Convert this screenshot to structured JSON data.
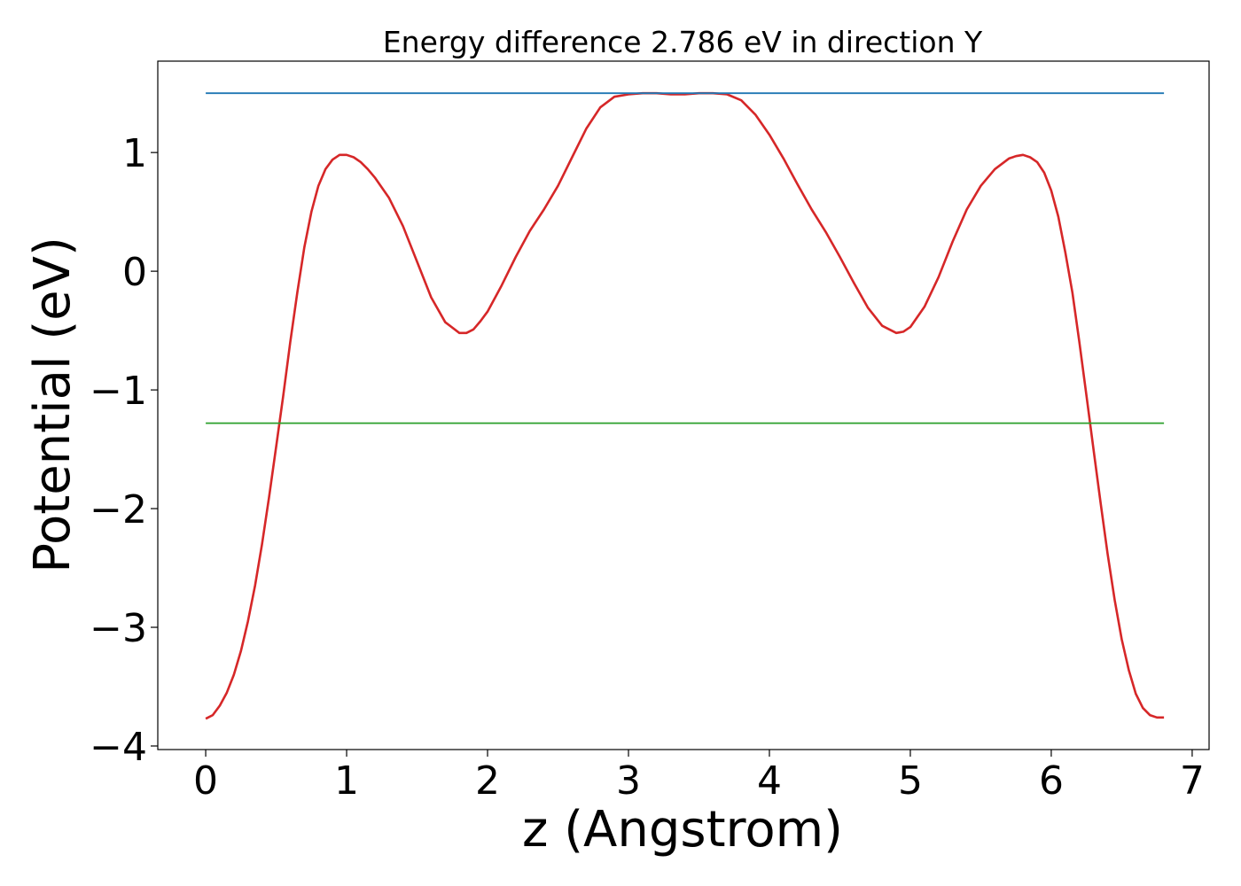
{
  "chart_data": {
    "type": "line",
    "title": "Energy difference 2.786 eV in direction Y",
    "xlabel": "z (Angstrom)",
    "ylabel": "Potential (eV)",
    "xlim": [
      -0.34,
      7.12
    ],
    "ylim": [
      -4.03,
      1.77
    ],
    "xticks": [
      0,
      1,
      2,
      3,
      4,
      5,
      6,
      7
    ],
    "yticks": [
      -4,
      -3,
      -2,
      -1,
      0,
      1
    ],
    "xtick_labels": [
      "0",
      "1",
      "2",
      "3",
      "4",
      "5",
      "6",
      "7"
    ],
    "ytick_labels": [
      "−4",
      "−3",
      "−2",
      "−1",
      "0",
      "1"
    ],
    "grid": false,
    "series": [
      {
        "color": "#d62728",
        "x": [
          0.0,
          0.05,
          0.1,
          0.15,
          0.2,
          0.25,
          0.3,
          0.35,
          0.4,
          0.45,
          0.5,
          0.55,
          0.6,
          0.65,
          0.7,
          0.75,
          0.8,
          0.85,
          0.9,
          0.95,
          1.0,
          1.05,
          1.1,
          1.15,
          1.2,
          1.3,
          1.4,
          1.5,
          1.6,
          1.7,
          1.8,
          1.85,
          1.9,
          1.95,
          2.0,
          2.1,
          2.2,
          2.3,
          2.4,
          2.5,
          2.6,
          2.7,
          2.8,
          2.9,
          3.0,
          3.1,
          3.2,
          3.3,
          3.4,
          3.5,
          3.6,
          3.7,
          3.8,
          3.9,
          4.0,
          4.1,
          4.2,
          4.3,
          4.4,
          4.5,
          4.6,
          4.7,
          4.8,
          4.9,
          4.95,
          5.0,
          5.1,
          5.2,
          5.3,
          5.4,
          5.5,
          5.6,
          5.7,
          5.75,
          5.8,
          5.85,
          5.9,
          5.95,
          6.0,
          6.05,
          6.1,
          6.15,
          6.2,
          6.25,
          6.3,
          6.35,
          6.4,
          6.45,
          6.5,
          6.55,
          6.6,
          6.65,
          6.7,
          6.75,
          6.8
        ],
        "y": [
          -3.77,
          -3.74,
          -3.66,
          -3.55,
          -3.4,
          -3.2,
          -2.95,
          -2.65,
          -2.3,
          -1.9,
          -1.48,
          -1.05,
          -0.6,
          -0.18,
          0.2,
          0.5,
          0.72,
          0.86,
          0.94,
          0.98,
          0.98,
          0.96,
          0.92,
          0.86,
          0.79,
          0.62,
          0.38,
          0.08,
          -0.22,
          -0.43,
          -0.52,
          -0.52,
          -0.49,
          -0.42,
          -0.34,
          -0.12,
          0.12,
          0.34,
          0.52,
          0.72,
          0.96,
          1.2,
          1.38,
          1.47,
          1.49,
          1.5,
          1.5,
          1.49,
          1.49,
          1.5,
          1.5,
          1.49,
          1.44,
          1.32,
          1.15,
          0.95,
          0.73,
          0.52,
          0.33,
          0.12,
          -0.1,
          -0.31,
          -0.46,
          -0.52,
          -0.51,
          -0.47,
          -0.3,
          -0.05,
          0.25,
          0.52,
          0.72,
          0.86,
          0.95,
          0.97,
          0.98,
          0.96,
          0.92,
          0.83,
          0.68,
          0.46,
          0.16,
          -0.18,
          -0.6,
          -1.05,
          -1.5,
          -1.95,
          -2.38,
          -2.77,
          -3.1,
          -3.36,
          -3.56,
          -3.68,
          -3.74,
          -3.76,
          -3.76
        ]
      },
      {
        "color": "#1f77b4",
        "x": [
          0.0,
          6.8
        ],
        "y": [
          1.5,
          1.5
        ]
      },
      {
        "color": "#2ca02c",
        "x": [
          0.0,
          6.8
        ],
        "y": [
          -1.28,
          -1.28
        ]
      }
    ]
  }
}
